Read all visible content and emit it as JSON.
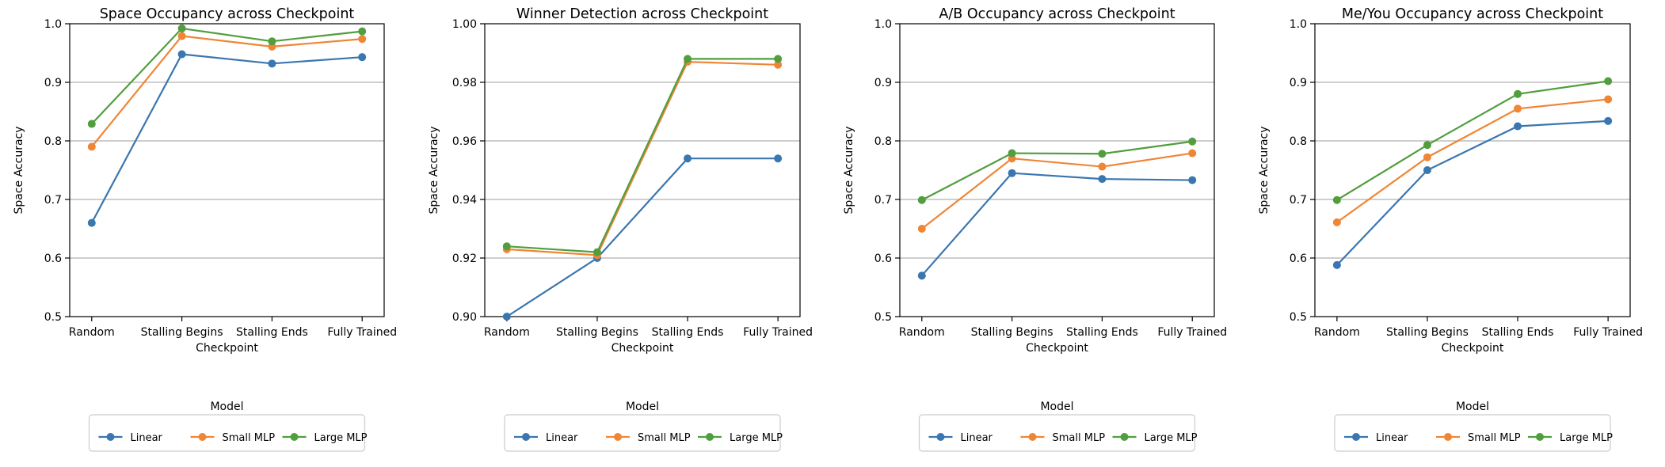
{
  "chart_data": [
    {
      "type": "line",
      "title": "Space Occupancy across Checkpoint",
      "xlabel": "Checkpoint",
      "ylabel": "Space Accuracy",
      "categories": [
        "Random",
        "Stalling Begins",
        "Stalling Ends",
        "Fully Trained"
      ],
      "ylim": [
        0.5,
        1.0
      ],
      "yticks": [
        "0.5",
        "0.6",
        "0.7",
        "0.8",
        "0.9",
        "1.0"
      ],
      "grid": "y",
      "legend": {
        "title": "Model",
        "position": "bottom"
      },
      "series": [
        {
          "name": "Linear",
          "color": "#3a76af",
          "values": [
            0.66,
            0.948,
            0.932,
            0.943
          ]
        },
        {
          "name": "Small MLP",
          "color": "#ef8636",
          "values": [
            0.79,
            0.979,
            0.961,
            0.974
          ]
        },
        {
          "name": "Large MLP",
          "color": "#519e3e",
          "values": [
            0.829,
            0.992,
            0.97,
            0.987
          ]
        }
      ]
    },
    {
      "type": "line",
      "title": "Winner Detection across Checkpoint",
      "xlabel": "Checkpoint",
      "ylabel": "Space Accuracy",
      "categories": [
        "Random",
        "Stalling Begins",
        "Stalling Ends",
        "Fully Trained"
      ],
      "ylim": [
        0.9,
        1.0
      ],
      "yticks": [
        "0.90",
        "0.92",
        "0.94",
        "0.96",
        "0.98",
        "1.00"
      ],
      "grid": "y",
      "legend": {
        "title": "Model",
        "position": "bottom"
      },
      "series": [
        {
          "name": "Linear",
          "color": "#3a76af",
          "values": [
            0.9,
            0.92,
            0.954,
            0.954
          ]
        },
        {
          "name": "Small MLP",
          "color": "#ef8636",
          "values": [
            0.923,
            0.921,
            0.987,
            0.986
          ]
        },
        {
          "name": "Large MLP",
          "color": "#519e3e",
          "values": [
            0.924,
            0.922,
            0.988,
            0.988
          ]
        }
      ]
    },
    {
      "type": "line",
      "title": "A/B Occupancy across Checkpoint",
      "xlabel": "Checkpoint",
      "ylabel": "Space Accuracy",
      "categories": [
        "Random",
        "Stalling Begins",
        "Stalling Ends",
        "Fully Trained"
      ],
      "ylim": [
        0.5,
        1.0
      ],
      "yticks": [
        "0.5",
        "0.6",
        "0.7",
        "0.8",
        "0.9",
        "1.0"
      ],
      "grid": "y",
      "legend": {
        "title": "Model",
        "position": "bottom"
      },
      "series": [
        {
          "name": "Linear",
          "color": "#3a76af",
          "values": [
            0.57,
            0.745,
            0.735,
            0.733
          ]
        },
        {
          "name": "Small MLP",
          "color": "#ef8636",
          "values": [
            0.65,
            0.77,
            0.756,
            0.779
          ]
        },
        {
          "name": "Large MLP",
          "color": "#519e3e",
          "values": [
            0.699,
            0.779,
            0.778,
            0.799
          ]
        }
      ]
    },
    {
      "type": "line",
      "title": "Me/You Occupancy across Checkpoint",
      "xlabel": "Checkpoint",
      "ylabel": "Space Accuracy",
      "categories": [
        "Random",
        "Stalling Begins",
        "Stalling Ends",
        "Fully Trained"
      ],
      "ylim": [
        0.5,
        1.0
      ],
      "yticks": [
        "0.5",
        "0.6",
        "0.7",
        "0.8",
        "0.9",
        "1.0"
      ],
      "grid": "y",
      "legend": {
        "title": "Model",
        "position": "bottom"
      },
      "series": [
        {
          "name": "Linear",
          "color": "#3a76af",
          "values": [
            0.588,
            0.75,
            0.825,
            0.834
          ]
        },
        {
          "name": "Small MLP",
          "color": "#ef8636",
          "values": [
            0.661,
            0.772,
            0.855,
            0.871
          ]
        },
        {
          "name": "Large MLP",
          "color": "#519e3e",
          "values": [
            0.699,
            0.793,
            0.88,
            0.902
          ]
        }
      ]
    }
  ]
}
